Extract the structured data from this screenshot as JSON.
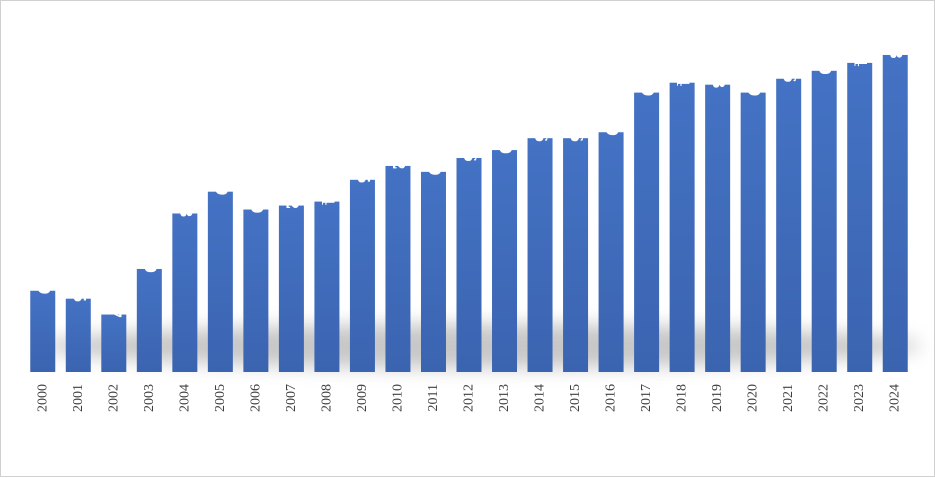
{
  "chart_data": {
    "type": "bar",
    "categories": [
      "2000",
      "2001",
      "2002",
      "2003",
      "2004",
      "2005",
      "2006",
      "2007",
      "2008",
      "2009",
      "2010",
      "2011",
      "2012",
      "2013",
      "2014",
      "2015",
      "2016",
      "2017",
      "2018",
      "2019",
      "2020",
      "2021",
      "2022",
      "2023",
      "2024"
    ],
    "values": [
      149,
      145,
      137,
      160,
      188,
      199,
      190,
      192,
      194,
      205,
      212,
      209,
      216,
      220,
      226,
      226,
      229,
      249,
      254,
      253,
      249,
      256,
      260,
      264,
      268
    ],
    "title": "",
    "xlabel": "",
    "ylabel": "",
    "ylim": [
      108,
      270
    ],
    "grid": false,
    "legend": "none",
    "bar_color": "#4472c4",
    "label_color": "#ffffff",
    "tick_color": "#404040"
  }
}
